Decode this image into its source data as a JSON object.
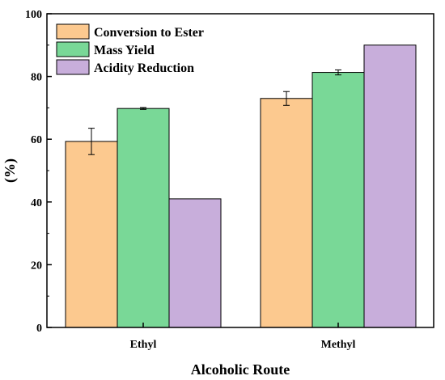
{
  "chart_data": {
    "type": "bar",
    "categories": [
      "Ethyl",
      "Methyl"
    ],
    "series": [
      {
        "name": "Conversion to Ester",
        "values": [
          59.3,
          73.0
        ],
        "error": [
          4.2,
          2.2
        ],
        "color": "#FCC98F"
      },
      {
        "name": "Mass Yield",
        "values": [
          69.8,
          81.3
        ],
        "error": [
          0.3,
          0.8
        ],
        "color": "#79D897"
      },
      {
        "name": "Acidity Reduction",
        "values": [
          41.0,
          90.0
        ],
        "error": [
          0,
          0
        ],
        "color": "#C8AEDB"
      }
    ],
    "title": "",
    "xlabel": "Alcoholic Route",
    "ylabel": "(%)",
    "ylim": [
      0,
      100
    ],
    "yticks": [
      0,
      20,
      40,
      60,
      80,
      100
    ],
    "grid": false,
    "legend_position": "top-left"
  }
}
